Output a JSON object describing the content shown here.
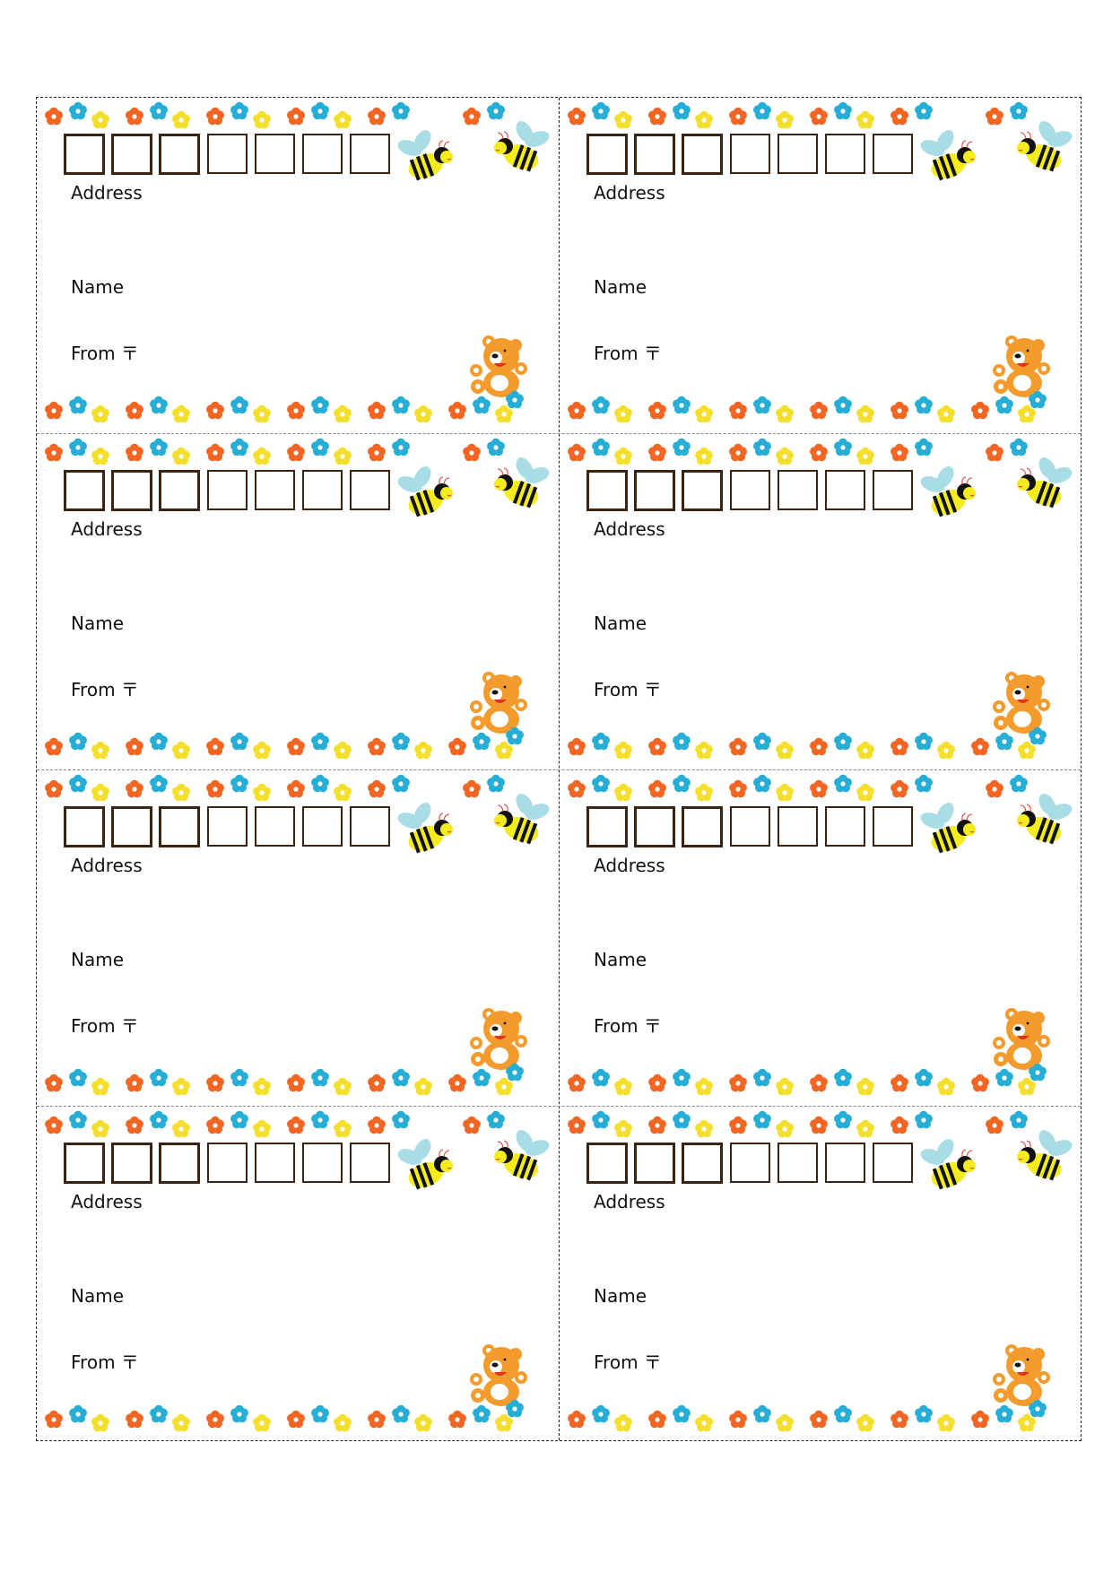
{
  "sheet": {
    "layout": {
      "columns": 2,
      "rows": 4
    },
    "colors": {
      "flower_orange": "#f26522",
      "flower_blue": "#27aed6",
      "flower_yellow": "#f5df2e",
      "zip_box_border": "#3a2411",
      "bee_wing": "#a9dde6",
      "bee_body_yellow": "#f4ec1f",
      "bear": "#f39b2c",
      "border_outer": "#222222",
      "border_inner": "#888888"
    },
    "cards": [
      {
        "address_label": "Address",
        "name_label": "Name",
        "from_label": "From 〒",
        "zip_box_count": 7
      },
      {
        "address_label": "Address",
        "name_label": "Name",
        "from_label": "From 〒",
        "zip_box_count": 7
      },
      {
        "address_label": "Address",
        "name_label": "Name",
        "from_label": "From 〒",
        "zip_box_count": 7
      },
      {
        "address_label": "Address",
        "name_label": "Name",
        "from_label": "From 〒",
        "zip_box_count": 7
      },
      {
        "address_label": "Address",
        "name_label": "Name",
        "from_label": "From 〒",
        "zip_box_count": 7
      },
      {
        "address_label": "Address",
        "name_label": "Name",
        "from_label": "From 〒",
        "zip_box_count": 7
      },
      {
        "address_label": "Address",
        "name_label": "Name",
        "from_label": "From 〒",
        "zip_box_count": 7
      },
      {
        "address_label": "Address",
        "name_label": "Name",
        "from_label": "From 〒",
        "zip_box_count": 7
      }
    ],
    "icons": {
      "flower": "flower-icon",
      "bee": "bee-icon",
      "bear": "teddy-bear-icon"
    }
  }
}
